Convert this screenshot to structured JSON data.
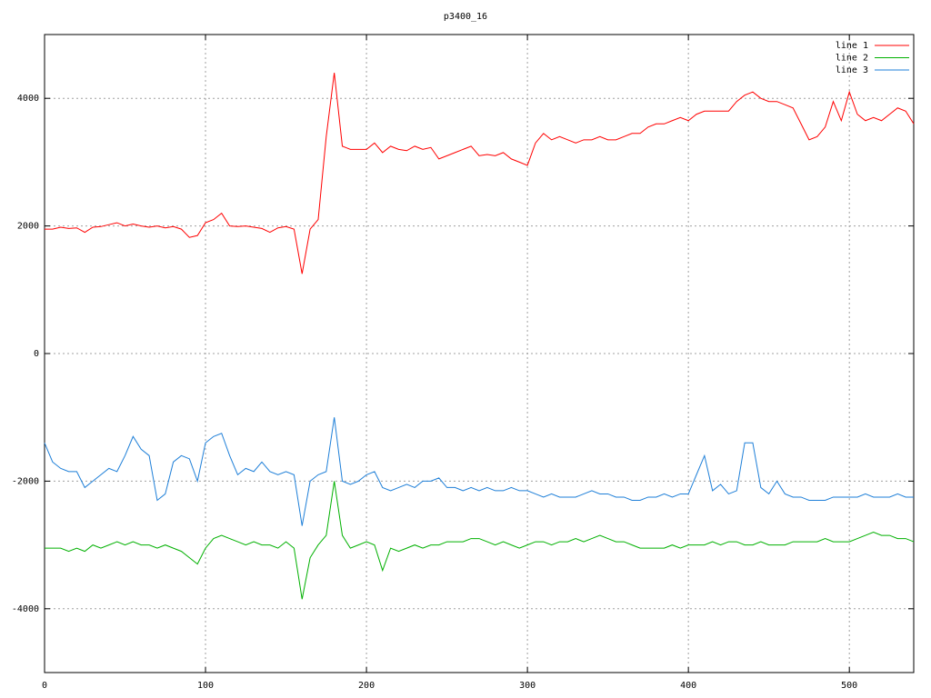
{
  "chart_data": {
    "type": "line",
    "title": "p3400_16",
    "x": [
      0,
      5,
      10,
      15,
      20,
      25,
      30,
      35,
      40,
      45,
      50,
      55,
      60,
      65,
      70,
      75,
      80,
      85,
      90,
      95,
      100,
      105,
      110,
      115,
      120,
      125,
      130,
      135,
      140,
      145,
      150,
      155,
      160,
      165,
      170,
      175,
      180,
      185,
      190,
      195,
      200,
      205,
      210,
      215,
      220,
      225,
      230,
      235,
      240,
      245,
      250,
      255,
      260,
      265,
      270,
      275,
      280,
      285,
      290,
      295,
      300,
      305,
      310,
      315,
      320,
      325,
      330,
      335,
      340,
      345,
      350,
      355,
      360,
      365,
      370,
      375,
      380,
      385,
      390,
      395,
      400,
      405,
      410,
      415,
      420,
      425,
      430,
      435,
      440,
      445,
      450,
      455,
      460,
      465,
      470,
      475,
      480,
      485,
      490,
      495,
      500,
      505,
      510,
      515,
      520,
      525,
      530,
      535,
      540
    ],
    "series": [
      {
        "name": "line 1",
        "color": "#ff0000",
        "values": [
          1950,
          1950,
          1980,
          1960,
          1970,
          1900,
          1980,
          1990,
          2020,
          2050,
          2000,
          2030,
          2000,
          1980,
          2000,
          1970,
          1990,
          1950,
          1820,
          1850,
          2050,
          2100,
          2200,
          2000,
          1990,
          2000,
          1980,
          1960,
          1900,
          1970,
          1990,
          1950,
          1250,
          1950,
          2100,
          3400,
          4400,
          3250,
          3200,
          3200,
          3200,
          3300,
          3150,
          3250,
          3200,
          3180,
          3250,
          3200,
          3230,
          3050,
          3100,
          3150,
          3200,
          3250,
          3100,
          3120,
          3100,
          3150,
          3050,
          3000,
          2950,
          3300,
          3450,
          3350,
          3400,
          3350,
          3300,
          3350,
          3350,
          3400,
          3350,
          3350,
          3400,
          3450,
          3450,
          3550,
          3600,
          3600,
          3650,
          3700,
          3650,
          3750,
          3800,
          3800,
          3800,
          3800,
          3950,
          4050,
          4100,
          4000,
          3950,
          3950,
          3900,
          3850,
          3600,
          3350,
          3400,
          3550,
          3950,
          3650,
          4100,
          3750,
          3650,
          3700,
          3650,
          3750,
          3850,
          3800,
          3600
        ]
      },
      {
        "name": "line 2",
        "color": "#00b000",
        "values": [
          -3050,
          -3050,
          -3050,
          -3100,
          -3050,
          -3100,
          -3000,
          -3050,
          -3000,
          -2950,
          -3000,
          -2950,
          -3000,
          -3000,
          -3050,
          -3000,
          -3050,
          -3100,
          -3200,
          -3300,
          -3050,
          -2900,
          -2850,
          -2900,
          -2950,
          -3000,
          -2950,
          -3000,
          -3000,
          -3050,
          -2950,
          -3050,
          -3850,
          -3200,
          -3000,
          -2850,
          -2000,
          -2850,
          -3050,
          -3000,
          -2950,
          -3000,
          -3400,
          -3050,
          -3100,
          -3050,
          -3000,
          -3050,
          -3000,
          -3000,
          -2950,
          -2950,
          -2950,
          -2900,
          -2900,
          -2950,
          -3000,
          -2950,
          -3000,
          -3050,
          -3000,
          -2950,
          -2950,
          -3000,
          -2950,
          -2950,
          -2900,
          -2950,
          -2900,
          -2850,
          -2900,
          -2950,
          -2950,
          -3000,
          -3050,
          -3050,
          -3050,
          -3050,
          -3000,
          -3050,
          -3000,
          -3000,
          -3000,
          -2950,
          -3000,
          -2950,
          -2950,
          -3000,
          -3000,
          -2950,
          -3000,
          -3000,
          -3000,
          -2950,
          -2950,
          -2950,
          -2950,
          -2900,
          -2950,
          -2950,
          -2950,
          -2900,
          -2850,
          -2800,
          -2850,
          -2850,
          -2900,
          -2900,
          -2950
        ]
      },
      {
        "name": "line 3",
        "color": "#1e7fd8",
        "values": [
          -1400,
          -1700,
          -1800,
          -1850,
          -1850,
          -2100,
          -2000,
          -1900,
          -1800,
          -1850,
          -1600,
          -1300,
          -1500,
          -1600,
          -2300,
          -2200,
          -1700,
          -1600,
          -1650,
          -2000,
          -1400,
          -1300,
          -1250,
          -1600,
          -1900,
          -1800,
          -1850,
          -1700,
          -1850,
          -1900,
          -1850,
          -1900,
          -2700,
          -2000,
          -1900,
          -1850,
          -1000,
          -2000,
          -2050,
          -2000,
          -1900,
          -1850,
          -2100,
          -2150,
          -2100,
          -2050,
          -2100,
          -2000,
          -2000,
          -1950,
          -2100,
          -2100,
          -2150,
          -2100,
          -2150,
          -2100,
          -2150,
          -2150,
          -2100,
          -2150,
          -2150,
          -2200,
          -2250,
          -2200,
          -2250,
          -2250,
          -2250,
          -2200,
          -2150,
          -2200,
          -2200,
          -2250,
          -2250,
          -2300,
          -2300,
          -2250,
          -2250,
          -2200,
          -2250,
          -2200,
          -2200,
          -1900,
          -1600,
          -2150,
          -2050,
          -2200,
          -2150,
          -1400,
          -1400,
          -2100,
          -2200,
          -2000,
          -2200,
          -2250,
          -2250,
          -2300,
          -2300,
          -2300,
          -2250,
          -2250,
          -2250,
          -2250,
          -2200,
          -2250,
          -2250,
          -2250,
          -2200,
          -2250,
          -2250
        ]
      }
    ],
    "xlim": [
      0,
      540
    ],
    "xticks": [
      0,
      100,
      200,
      300,
      400,
      500
    ],
    "ylim": [
      -5000,
      5000
    ],
    "yticks": [
      -4000,
      -2000,
      0,
      2000,
      4000
    ],
    "grid": true,
    "legend": "top-right"
  }
}
